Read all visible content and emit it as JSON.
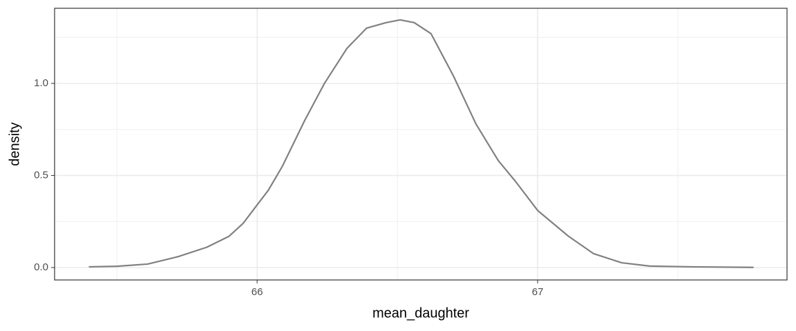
{
  "chart_data": {
    "type": "line",
    "x_label": "mean_daughter",
    "y_label": "density",
    "x": [
      65.4,
      65.5,
      65.61,
      65.72,
      65.82,
      65.9,
      65.95,
      66.0,
      66.04,
      66.09,
      66.17,
      66.24,
      66.32,
      66.39,
      66.46,
      66.51,
      66.56,
      66.62,
      66.7,
      66.78,
      66.86,
      66.92,
      67.0,
      67.11,
      67.2,
      67.3,
      67.4,
      67.55,
      67.77
    ],
    "values": [
      0.004,
      0.007,
      0.019,
      0.06,
      0.11,
      0.17,
      0.24,
      0.34,
      0.42,
      0.55,
      0.8,
      1.0,
      1.19,
      1.3,
      1.33,
      1.345,
      1.33,
      1.27,
      1.04,
      0.78,
      0.58,
      0.47,
      0.31,
      0.17,
      0.075,
      0.026,
      0.008,
      0.004,
      0.001
    ],
    "color": "#808080",
    "xlim": [
      65.278,
      67.889
    ],
    "ylim": [
      -0.0674,
      1.408
    ],
    "xticks": [
      66,
      67
    ],
    "yticks": [
      {
        "value": 0,
        "label": "0.0"
      },
      {
        "value": 0.5,
        "label": "0.5"
      },
      {
        "value": 1,
        "label": "1.0"
      }
    ],
    "x_minor_grid": [
      65.5,
      66.5,
      67.5
    ],
    "y_minor_grid": [
      0.25,
      0.75,
      1.25
    ],
    "grid": true
  }
}
